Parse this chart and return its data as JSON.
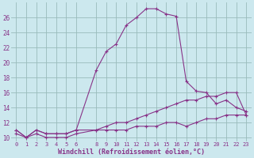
{
  "xlabel": "Windchill (Refroidissement éolien,°C)",
  "bg_color": "#cce8ee",
  "grid_color": "#99bbbb",
  "line_color": "#883388",
  "hours": [
    0,
    1,
    2,
    3,
    4,
    5,
    6,
    8,
    9,
    10,
    11,
    12,
    13,
    14,
    15,
    16,
    17,
    18,
    19,
    20,
    21,
    22,
    23
  ],
  "temp": [
    11,
    10,
    11,
    10.5,
    10.5,
    10.5,
    11,
    19,
    21.5,
    22.5,
    25,
    26,
    27.2,
    27.2,
    26.5,
    26.2,
    17.5,
    16.2,
    16,
    14.5,
    15,
    14,
    13.5
  ],
  "windchill": [
    11,
    10,
    11,
    10.5,
    10.5,
    10.5,
    11,
    11,
    11,
    11,
    11,
    11.5,
    11.5,
    11.5,
    12,
    12,
    11.5,
    12,
    12.5,
    12.5,
    13,
    13,
    13
  ],
  "dewpoint": [
    10.5,
    10,
    10.5,
    10,
    10,
    10,
    10.5,
    11,
    11.5,
    12,
    12,
    12.5,
    13,
    13.5,
    14,
    14.5,
    15,
    15,
    15.5,
    15.5,
    16,
    16,
    13
  ],
  "ylim": [
    9.5,
    28
  ],
  "yticks": [
    10,
    12,
    14,
    16,
    18,
    20,
    22,
    24,
    26
  ],
  "xlim": [
    -0.5,
    23.5
  ],
  "xticks": [
    0,
    1,
    2,
    3,
    4,
    5,
    6,
    8,
    9,
    10,
    11,
    12,
    13,
    14,
    15,
    16,
    17,
    18,
    19,
    20,
    21,
    22,
    23
  ]
}
